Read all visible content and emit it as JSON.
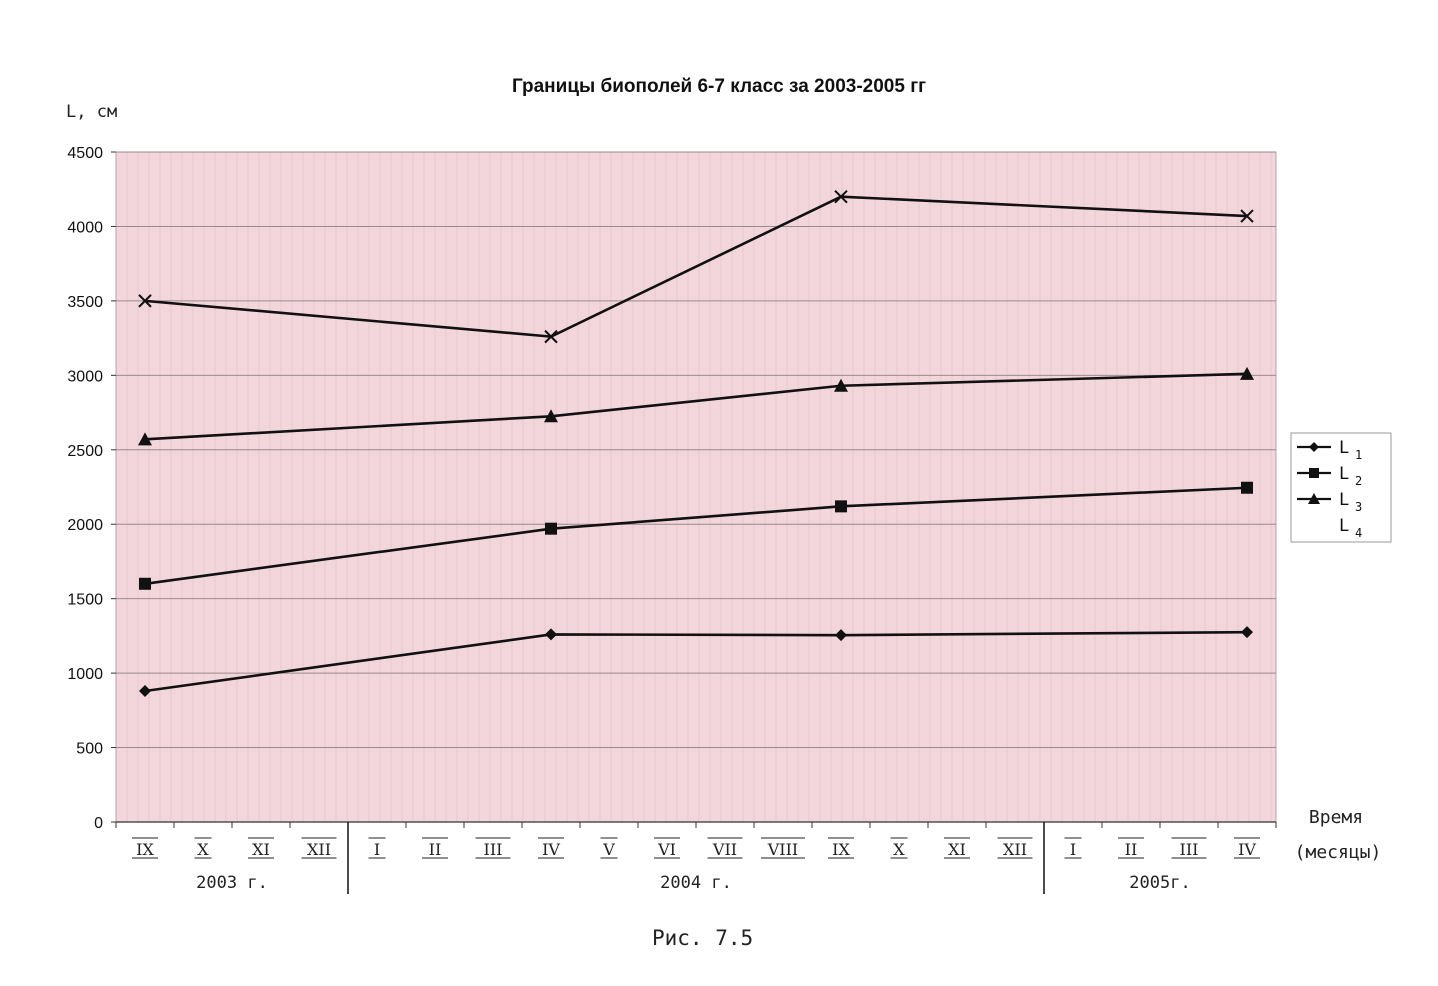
{
  "chart_data": {
    "type": "line",
    "title": "Границы биополей 6-7 класс за 2003-2005 гг",
    "ylabel": "L, см",
    "xlabel_line1": "Время",
    "xlabel_line2": "(месяцы)",
    "ylim": [
      0,
      4500
    ],
    "yticks": [
      "0",
      "500",
      "1000",
      "1500",
      "2000",
      "2500",
      "3000",
      "3500",
      "4000",
      "4500"
    ],
    "categories": [
      "IX",
      "X",
      "XI",
      "XII",
      "I",
      "II",
      "III",
      "IV",
      "V",
      "VI",
      "VII",
      "VIII",
      "IX",
      "X",
      "XI",
      "XII",
      "I",
      "II",
      "III",
      "IV"
    ],
    "year_groups": [
      {
        "label": "2003 г.",
        "start": 0,
        "end": 3
      },
      {
        "label": "2004 г.",
        "start": 4,
        "end": 15
      },
      {
        "label": "2005г.",
        "start": 16,
        "end": 19
      }
    ],
    "series": [
      {
        "name": "L",
        "sub": "1",
        "marker": "diamond",
        "points": [
          [
            0,
            880
          ],
          [
            7,
            1260
          ],
          [
            12,
            1255
          ],
          [
            19,
            1275
          ]
        ]
      },
      {
        "name": "L",
        "sub": "2",
        "marker": "square",
        "points": [
          [
            0,
            1600
          ],
          [
            7,
            1970
          ],
          [
            12,
            2120
          ],
          [
            19,
            2245
          ]
        ]
      },
      {
        "name": "L",
        "sub": "3",
        "marker": "triangle",
        "points": [
          [
            0,
            2570
          ],
          [
            7,
            2725
          ],
          [
            12,
            2930
          ],
          [
            19,
            3010
          ]
        ]
      },
      {
        "name": "L",
        "sub": "4",
        "marker": "x",
        "points": [
          [
            0,
            3500
          ],
          [
            7,
            3260
          ],
          [
            12,
            4200
          ],
          [
            19,
            4070
          ]
        ]
      }
    ],
    "legend_position": "right",
    "grid": true,
    "colors": {
      "plot_bg": "#f3d5dc",
      "line": "#111111",
      "grid": "#9a8a8e",
      "vgrid": "#b9a3a8"
    }
  },
  "caption": "Рис. 7.5"
}
